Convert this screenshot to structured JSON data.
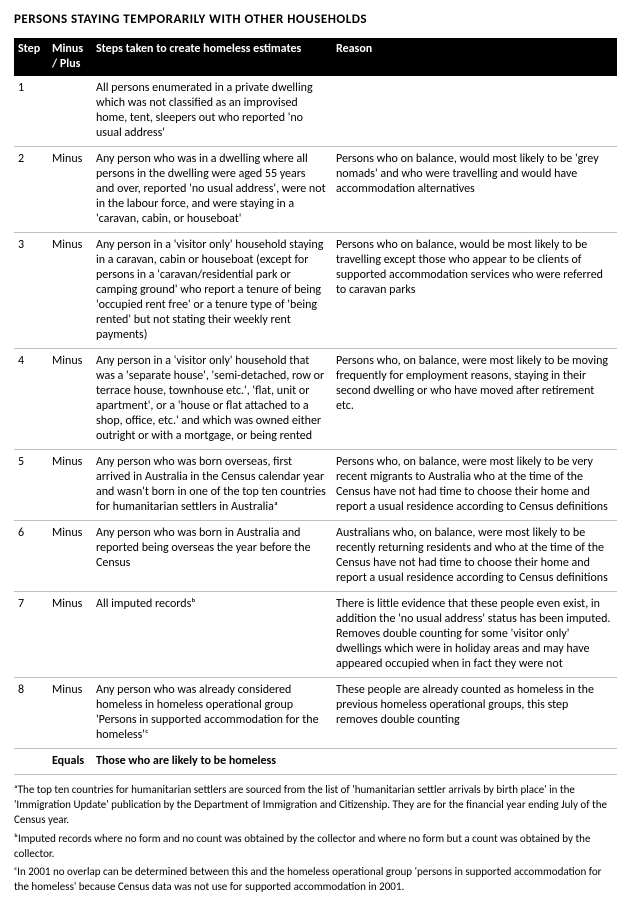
{
  "title": "PERSONS STAYING TEMPORARILY WITH OTHER HOUSEHOLDS",
  "headers": {
    "step": "Step",
    "mp": "Minus / Plus",
    "steps_taken": "Steps taken to create homeless estimates",
    "reason": "Reason"
  },
  "rows": [
    {
      "step": "1",
      "mp": "",
      "steps_taken": "All persons enumerated in a private dwelling which was not classified as an improvised home, tent, sleepers out who reported 'no usual address'",
      "reason": ""
    },
    {
      "step": "2",
      "mp": "Minus",
      "steps_taken": "Any person who was in a dwelling where all persons in the dwelling were aged 55 years and over, reported 'no usual address', were not in the labour force, and were staying in a 'caravan, cabin, or houseboat'",
      "reason": "Persons who on balance, would most likely to be 'grey nomads' and who were travelling and would have accommodation alternatives"
    },
    {
      "step": "3",
      "mp": "Minus",
      "steps_taken": "Any person in a 'visitor only' household staying in a caravan, cabin or houseboat (except for persons in a 'caravan/residential park or camping ground' who report a tenure of being 'occupied rent free' or a tenure type of 'being rented' but not stating their weekly rent payments)",
      "reason": "Persons who on balance, would be most likely to be travelling except those who appear to be clients of supported accommodation services who were referred to caravan parks"
    },
    {
      "step": "4",
      "mp": "Minus",
      "steps_taken": "Any person in a 'visitor only' household that was a 'separate house', 'semi-detached, row or terrace house, townhouse etc.', 'flat, unit or apartment', or a 'house or flat attached to a shop, office, etc.' and which was owned either outright or with a mortgage, or being rented",
      "reason": "Persons who, on balance, were most likely to be moving frequently for employment reasons, staying in their second dwelling or who have moved after retirement etc."
    },
    {
      "step": "5",
      "mp": "Minus",
      "steps_taken": "Any person who was born overseas, first arrived in Australia in the Census calendar year and wasn't born in one of the top ten countries for humanitarian settlers in Australiaᵃ",
      "reason": "Persons who, on balance, were most likely to be very recent migrants to Australia who at the time of the Census have not had time to choose their home and report a usual residence according to Census definitions"
    },
    {
      "step": "6",
      "mp": "Minus",
      "steps_taken": "Any person who was born in Australia and reported being overseas the year before the Census",
      "reason": "Australians who, on balance, were most likely to be recently returning residents and who at the time of the Census have not had time to choose their home and report a usual residence according to Census definitions"
    },
    {
      "step": "7",
      "mp": "Minus",
      "steps_taken": "All imputed recordsᵇ",
      "reason": "There is little evidence that these people even exist, in addition the 'no usual address' status has been imputed.  Removes double counting for some 'visitor only' dwellings which were in holiday areas and may have appeared occupied when in fact they were not"
    },
    {
      "step": "8",
      "mp": "Minus",
      "steps_taken": "Any person who was already considered homeless in homeless operational group 'Persons in supported accommodation for the homeless'ᶜ",
      "reason": "These people are already counted as homeless in the previous homeless operational groups, this step removes double counting"
    }
  ],
  "equals": {
    "mp": "Equals",
    "text": "Those who are likely to be homeless"
  },
  "footnotes": {
    "a": "ᵃThe top ten countries for humanitarian settlers are sourced from the list of 'humanitarian settler arrivals by birth place' in the 'Immigration Update' publication by the Department of Immigration and Citizenship.  They are for the financial year ending July of the Census year.",
    "b": "ᵇImputed records where no form and no count was obtained by the collector and where no form but a count was obtained by the collector.",
    "c": "ᶜIn 2001 no overlap can be determined between this and the homeless operational group 'persons in supported accommodation for the homeless' because Census data was not use for supported accommodation in 2001."
  }
}
